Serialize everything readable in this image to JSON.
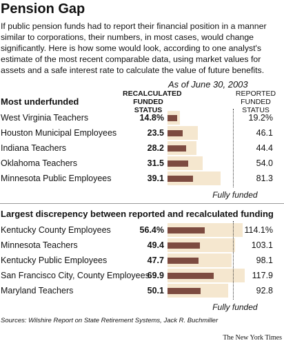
{
  "title": "Pension Gap",
  "intro": "If public pension funds had to report their financial position in a manner similar to corporations, their numbers, in most cases, would change significantly. Here is how some would look, according to one analyst's estimate of the most recent comparable data, using market values for assets and a safe interest rate to calculate the value of future benefits.",
  "date_note": "As of June 30, 2003",
  "source": "Sources: Wilshire Report on State Retirement Systems, Jack R. Buchmiller",
  "credit": "The New York Times",
  "chart_data": [
    {
      "type": "bar",
      "title": "Most underfunded",
      "categories": [
        "West Virginia Teachers",
        "Houston Municipal Employees",
        "Indiana Teachers",
        "Oklahoma Teachers",
        "Minnesota Public Employees"
      ],
      "series": [
        {
          "name": "RECALCULATED FUNDED STATUS",
          "color": "#7d4b40",
          "values": [
            14.8,
            23.5,
            28.2,
            31.5,
            39.1
          ],
          "value_labels": [
            "14.8%",
            "23.5",
            "28.2",
            "31.5",
            "39.1"
          ]
        },
        {
          "name": "REPORTED FUNDED STATUS",
          "color": "#f5e7cf",
          "values": [
            19.2,
            46.1,
            44.4,
            54.0,
            81.3
          ],
          "value_labels": [
            "19.2%",
            "46.1",
            "44.4",
            "54.0",
            "81.3"
          ]
        }
      ],
      "xlim": [
        0,
        125
      ],
      "reference_line": {
        "value": 100,
        "label": "Fully funded"
      }
    },
    {
      "type": "bar",
      "title": "Largest discrepency between reported and recalculated funding",
      "categories": [
        "Kentucky County Employees",
        "Minnesota Teachers",
        "Kentucky Public Employees",
        "San Francisco City, County Employees",
        "Maryland Teachers"
      ],
      "series": [
        {
          "color": "#7d4b40",
          "values": [
            56.4,
            49.4,
            47.7,
            69.9,
            50.1
          ],
          "value_labels": [
            "56.4%",
            "49.4",
            "47.7",
            "69.9",
            "50.1"
          ]
        },
        {
          "color": "#f5e7cf",
          "values": [
            114.1,
            103.1,
            98.1,
            117.9,
            92.8
          ],
          "value_labels": [
            "114.1%",
            "103.1",
            "98.1",
            "117.9",
            "92.8"
          ]
        }
      ],
      "xlim": [
        0,
        125
      ],
      "reference_line": {
        "value": 100,
        "label": "Fully funded"
      }
    }
  ]
}
